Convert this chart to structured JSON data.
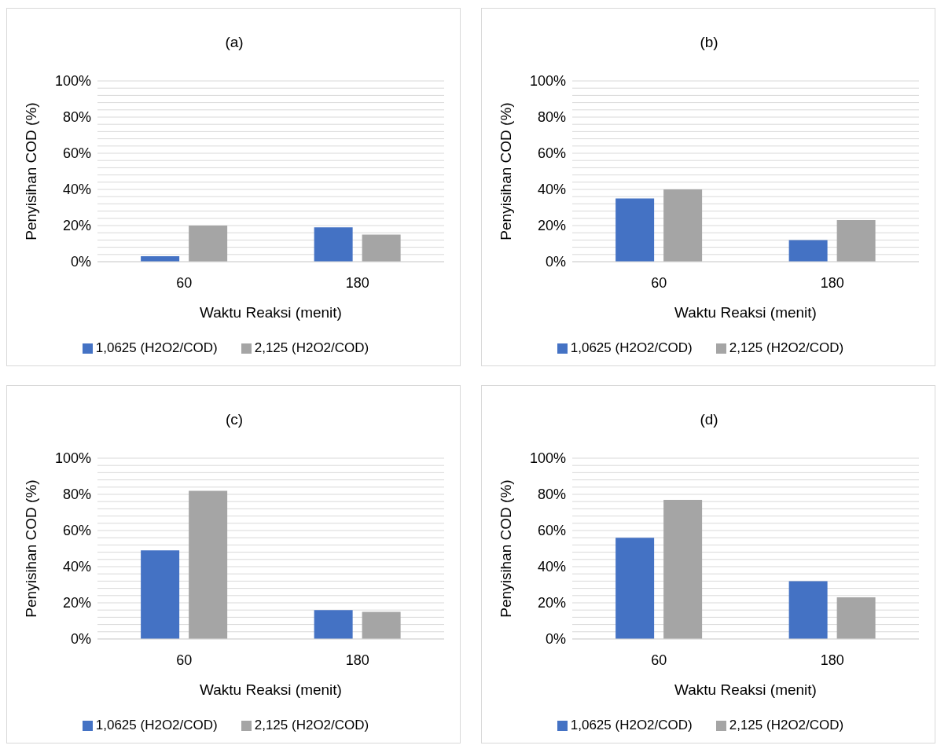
{
  "chart_data": [
    {
      "type": "bar",
      "title": "(a)",
      "xlabel": "Waktu Reaksi (menit)",
      "ylabel": "Penyisihan COD (%)",
      "categories": [
        "60",
        "180"
      ],
      "series": [
        {
          "name": "1,0625 (H2O2/COD)",
          "color": "#4472c4",
          "values": [
            3,
            19
          ]
        },
        {
          "name": "2,125 (H2O2/COD)",
          "color": "#a5a5a5",
          "values": [
            20,
            15
          ]
        }
      ],
      "ylim": [
        0,
        100
      ],
      "yticks": [
        {
          "value": 0,
          "label": "0%"
        },
        {
          "value": 4,
          "label": null
        },
        {
          "value": 8,
          "label": null
        },
        {
          "value": 12,
          "label": null
        },
        {
          "value": 16,
          "label": null
        },
        {
          "value": 20,
          "label": "20%"
        },
        {
          "value": 24,
          "label": null
        },
        {
          "value": 28,
          "label": null
        },
        {
          "value": 32,
          "label": null
        },
        {
          "value": 36,
          "label": null
        },
        {
          "value": 40,
          "label": "40%"
        },
        {
          "value": 44,
          "label": null
        },
        {
          "value": 48,
          "label": null
        },
        {
          "value": 52,
          "label": null
        },
        {
          "value": 56,
          "label": null
        },
        {
          "value": 60,
          "label": "60%"
        },
        {
          "value": 64,
          "label": null
        },
        {
          "value": 68,
          "label": null
        },
        {
          "value": 72,
          "label": null
        },
        {
          "value": 76,
          "label": null
        },
        {
          "value": 80,
          "label": "80%"
        },
        {
          "value": 84,
          "label": null
        },
        {
          "value": 88,
          "label": null
        },
        {
          "value": 92,
          "label": null
        },
        {
          "value": 96,
          "label": null
        },
        {
          "value": 100,
          "label": "100%"
        }
      ],
      "grid": "y",
      "legend": "bottom"
    },
    {
      "type": "bar",
      "title": "(b)",
      "xlabel": "Waktu Reaksi (menit)",
      "ylabel": "Penyisihan COD (%)",
      "categories": [
        "60",
        "180"
      ],
      "series": [
        {
          "name": "1,0625 (H2O2/COD)",
          "color": "#4472c4",
          "values": [
            35,
            12
          ]
        },
        {
          "name": "2,125 (H2O2/COD)",
          "color": "#a5a5a5",
          "values": [
            40,
            23
          ]
        }
      ],
      "ylim": [
        0,
        100
      ],
      "yticks": [
        {
          "value": 0,
          "label": "0%"
        },
        {
          "value": 4,
          "label": null
        },
        {
          "value": 8,
          "label": null
        },
        {
          "value": 12,
          "label": null
        },
        {
          "value": 16,
          "label": null
        },
        {
          "value": 20,
          "label": "20%"
        },
        {
          "value": 24,
          "label": null
        },
        {
          "value": 28,
          "label": null
        },
        {
          "value": 32,
          "label": null
        },
        {
          "value": 36,
          "label": null
        },
        {
          "value": 40,
          "label": "40%"
        },
        {
          "value": 44,
          "label": null
        },
        {
          "value": 48,
          "label": null
        },
        {
          "value": 52,
          "label": null
        },
        {
          "value": 56,
          "label": null
        },
        {
          "value": 60,
          "label": "60%"
        },
        {
          "value": 64,
          "label": null
        },
        {
          "value": 68,
          "label": null
        },
        {
          "value": 72,
          "label": null
        },
        {
          "value": 76,
          "label": null
        },
        {
          "value": 80,
          "label": "80%"
        },
        {
          "value": 84,
          "label": null
        },
        {
          "value": 88,
          "label": null
        },
        {
          "value": 92,
          "label": null
        },
        {
          "value": 96,
          "label": null
        },
        {
          "value": 100,
          "label": "100%"
        }
      ],
      "grid": "y",
      "legend": "bottom"
    },
    {
      "type": "bar",
      "title": "(c)",
      "xlabel": "Waktu Reaksi (menit)",
      "ylabel": "Penyisihan COD (%)",
      "categories": [
        "60",
        "180"
      ],
      "series": [
        {
          "name": "1,0625 (H2O2/COD)",
          "color": "#4472c4",
          "values": [
            49,
            16
          ]
        },
        {
          "name": "2,125 (H2O2/COD)",
          "color": "#a5a5a5",
          "values": [
            82,
            15
          ]
        }
      ],
      "ylim": [
        0,
        100
      ],
      "yticks": [
        {
          "value": 0,
          "label": "0%"
        },
        {
          "value": 4,
          "label": null
        },
        {
          "value": 8,
          "label": null
        },
        {
          "value": 12,
          "label": null
        },
        {
          "value": 16,
          "label": null
        },
        {
          "value": 20,
          "label": "20%"
        },
        {
          "value": 24,
          "label": null
        },
        {
          "value": 28,
          "label": null
        },
        {
          "value": 32,
          "label": null
        },
        {
          "value": 36,
          "label": null
        },
        {
          "value": 40,
          "label": "40%"
        },
        {
          "value": 44,
          "label": null
        },
        {
          "value": 48,
          "label": null
        },
        {
          "value": 52,
          "label": null
        },
        {
          "value": 56,
          "label": null
        },
        {
          "value": 60,
          "label": "60%"
        },
        {
          "value": 64,
          "label": null
        },
        {
          "value": 68,
          "label": null
        },
        {
          "value": 72,
          "label": null
        },
        {
          "value": 76,
          "label": null
        },
        {
          "value": 80,
          "label": "80%"
        },
        {
          "value": 84,
          "label": null
        },
        {
          "value": 88,
          "label": null
        },
        {
          "value": 92,
          "label": null
        },
        {
          "value": 96,
          "label": null
        },
        {
          "value": 100,
          "label": "100%"
        }
      ],
      "grid": "y",
      "legend": "bottom"
    },
    {
      "type": "bar",
      "title": "(d)",
      "xlabel": "Waktu Reaksi (menit)",
      "ylabel": "Penyisihan COD (%)",
      "categories": [
        "60",
        "180"
      ],
      "series": [
        {
          "name": "1,0625 (H2O2/COD)",
          "color": "#4472c4",
          "values": [
            56,
            32
          ]
        },
        {
          "name": "2,125 (H2O2/COD)",
          "color": "#a5a5a5",
          "values": [
            77,
            23
          ]
        }
      ],
      "ylim": [
        0,
        100
      ],
      "yticks": [
        {
          "value": 0,
          "label": "0%"
        },
        {
          "value": 4,
          "label": null
        },
        {
          "value": 8,
          "label": null
        },
        {
          "value": 12,
          "label": null
        },
        {
          "value": 16,
          "label": null
        },
        {
          "value": 20,
          "label": "20%"
        },
        {
          "value": 24,
          "label": null
        },
        {
          "value": 28,
          "label": null
        },
        {
          "value": 32,
          "label": null
        },
        {
          "value": 36,
          "label": null
        },
        {
          "value": 40,
          "label": "40%"
        },
        {
          "value": 44,
          "label": null
        },
        {
          "value": 48,
          "label": null
        },
        {
          "value": 52,
          "label": null
        },
        {
          "value": 56,
          "label": null
        },
        {
          "value": 60,
          "label": "60%"
        },
        {
          "value": 64,
          "label": null
        },
        {
          "value": 68,
          "label": null
        },
        {
          "value": 72,
          "label": null
        },
        {
          "value": 76,
          "label": null
        },
        {
          "value": 80,
          "label": "80%"
        },
        {
          "value": 84,
          "label": null
        },
        {
          "value": 88,
          "label": null
        },
        {
          "value": 92,
          "label": null
        },
        {
          "value": 96,
          "label": null
        },
        {
          "value": 100,
          "label": "100%"
        }
      ],
      "grid": "y",
      "legend": "bottom"
    }
  ]
}
